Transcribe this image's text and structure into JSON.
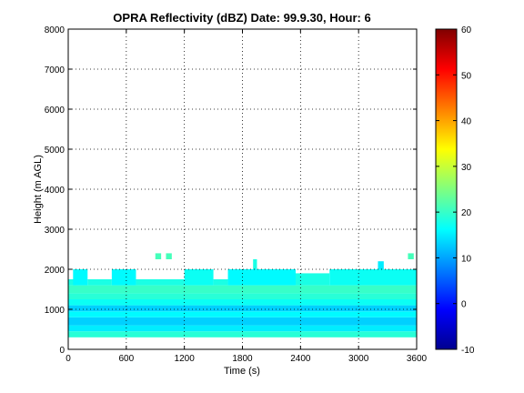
{
  "chart_data": {
    "type": "heatmap",
    "title": "OPRA Reflectivity (dBZ)  Date: 99.9.30, Hour: 6",
    "xlabel": "Time (s)",
    "ylabel": "Height (m AGL)",
    "xlim": [
      0,
      3600
    ],
    "ylim": [
      0,
      8000
    ],
    "x_ticks": [
      "0",
      "600",
      "1200",
      "1800",
      "2400",
      "3000",
      "3600"
    ],
    "y_ticks": [
      "0",
      "1000",
      "2000",
      "3000",
      "4000",
      "5000",
      "6000",
      "7000",
      "8000"
    ],
    "grid": true,
    "colorbar": {
      "colormap": "jet",
      "range": [
        -10,
        60
      ],
      "ticks": [
        "-10",
        "0",
        "10",
        "20",
        "30",
        "40",
        "50",
        "60"
      ]
    },
    "echo_layers": [
      {
        "height_from": 300,
        "height_to": 450,
        "t_from": 0,
        "t_to": 3600,
        "dbz": 19
      },
      {
        "height_from": 450,
        "height_to": 600,
        "t_from": 0,
        "t_to": 3600,
        "dbz": 15
      },
      {
        "height_from": 600,
        "height_to": 800,
        "t_from": 0,
        "t_to": 3600,
        "dbz": 13
      },
      {
        "height_from": 800,
        "height_to": 950,
        "t_from": 0,
        "t_to": 3600,
        "dbz": 16
      },
      {
        "height_from": 950,
        "height_to": 1100,
        "t_from": 0,
        "t_to": 3600,
        "dbz": 13
      },
      {
        "height_from": 1100,
        "height_to": 1250,
        "t_from": 0,
        "t_to": 3600,
        "dbz": 17
      },
      {
        "height_from": 1250,
        "height_to": 1400,
        "t_from": 0,
        "t_to": 3600,
        "dbz": 19
      },
      {
        "height_from": 1400,
        "height_to": 1600,
        "t_from": 0,
        "t_to": 3600,
        "dbz": 20
      }
    ],
    "echo_tops": [
      {
        "t_from": 0,
        "t_to": 80,
        "height_from": 1600,
        "height_to": 1750,
        "dbz": 18
      },
      {
        "t_from": 50,
        "t_to": 200,
        "height_from": 1600,
        "height_to": 2000,
        "dbz": 16
      },
      {
        "t_from": 200,
        "t_to": 450,
        "height_from": 1600,
        "height_to": 1750,
        "dbz": 18
      },
      {
        "t_from": 450,
        "t_to": 700,
        "height_from": 1600,
        "height_to": 2000,
        "dbz": 16
      },
      {
        "t_from": 700,
        "t_to": 1200,
        "height_from": 1600,
        "height_to": 1750,
        "dbz": 18
      },
      {
        "t_from": 1200,
        "t_to": 1500,
        "height_from": 1600,
        "height_to": 2000,
        "dbz": 17
      },
      {
        "t_from": 1500,
        "t_to": 1650,
        "height_from": 1600,
        "height_to": 1750,
        "dbz": 18
      },
      {
        "t_from": 1650,
        "t_to": 2350,
        "height_from": 1600,
        "height_to": 2000,
        "dbz": 16
      },
      {
        "t_from": 2350,
        "t_to": 2700,
        "height_from": 1600,
        "height_to": 1900,
        "dbz": 18
      },
      {
        "t_from": 2700,
        "t_to": 3600,
        "height_from": 1600,
        "height_to": 2000,
        "dbz": 17
      },
      {
        "t_from": 900,
        "t_to": 960,
        "height_from": 2250,
        "height_to": 2400,
        "dbz": 21
      },
      {
        "t_from": 1010,
        "t_to": 1070,
        "height_from": 2250,
        "height_to": 2400,
        "dbz": 21
      },
      {
        "t_from": 1910,
        "t_to": 1950,
        "height_from": 2000,
        "height_to": 2250,
        "dbz": 18
      },
      {
        "t_from": 3200,
        "t_to": 3260,
        "height_from": 2000,
        "height_to": 2200,
        "dbz": 15
      },
      {
        "t_from": 3510,
        "t_to": 3570,
        "height_from": 2250,
        "height_to": 2400,
        "dbz": 21
      }
    ]
  }
}
